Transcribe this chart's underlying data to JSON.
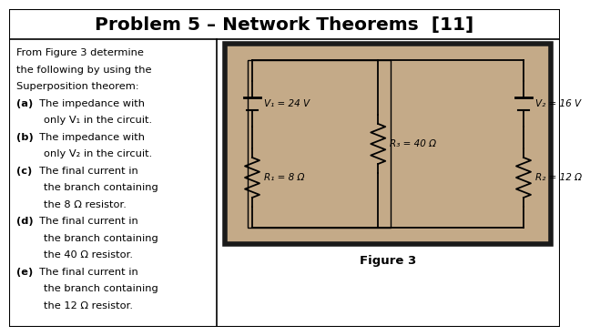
{
  "title": "Problem 5 – Network Theorems  [11]",
  "bg_color": "#ffffff",
  "circuit_bg": "#c4aa88",
  "circuit_border": "#1a1a1a",
  "left_panel_lines": [
    {
      "text": "From Figure 3 determine",
      "bold": false,
      "indent": false
    },
    {
      "text": "the following by using the",
      "bold": false,
      "indent": false
    },
    {
      "text": "Superposition theorem:",
      "bold": false,
      "indent": false
    },
    {
      "text": "(a)",
      "bold": true,
      "indent": false,
      "rest": "  The impedance with"
    },
    {
      "text": "only V₁ in the circuit.",
      "bold": false,
      "indent": true
    },
    {
      "text": "(b)",
      "bold": true,
      "indent": false,
      "rest": "  The impedance with"
    },
    {
      "text": "only V₂ in the circuit.",
      "bold": false,
      "indent": true
    },
    {
      "text": "(c)",
      "bold": true,
      "indent": false,
      "rest": "  The final current in"
    },
    {
      "text": "the branch containing",
      "bold": false,
      "indent": true
    },
    {
      "text": "the 8 Ω resistor.",
      "bold": false,
      "indent": true
    },
    {
      "text": "(d)",
      "bold": true,
      "indent": false,
      "rest": "  The final current in"
    },
    {
      "text": "the branch containing",
      "bold": false,
      "indent": true
    },
    {
      "text": "the 40 Ω resistor.",
      "bold": false,
      "indent": true
    },
    {
      "text": "(e)",
      "bold": true,
      "indent": false,
      "rest": "  The final current in"
    },
    {
      "text": "the branch containing",
      "bold": false,
      "indent": true
    },
    {
      "text": "the 12 Ω resistor.",
      "bold": false,
      "indent": true
    }
  ],
  "figure_caption": "Figure 3",
  "V1_label": "V₁ = 24 V",
  "V2_label": "V₂ = 16 V",
  "R1_label": "R₁ = 8 Ω",
  "R2_label": "R₃ = 40 Ω",
  "R3_label": "R₂ = 12 Ω"
}
